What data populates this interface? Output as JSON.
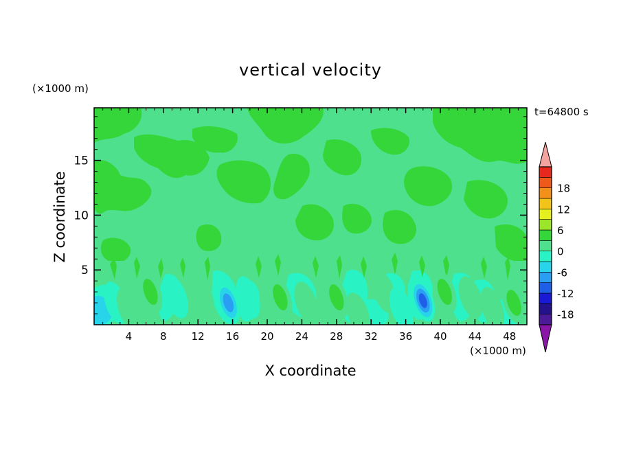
{
  "chart_data": {
    "type": "heatmap",
    "title": "vertical velocity",
    "xlabel": "X coordinate",
    "ylabel": "Z coordinate",
    "x_unit": "(×1000 m)",
    "y_unit": "(×1000 m)",
    "time_label": "t=64800 s",
    "xlim": [
      0,
      50
    ],
    "ylim": [
      0,
      19.8
    ],
    "x_ticks": [
      4,
      8,
      12,
      16,
      20,
      24,
      28,
      32,
      36,
      40,
      44,
      48
    ],
    "y_ticks": [
      5,
      10,
      15
    ],
    "colorbar": {
      "levels": [
        -21,
        -18,
        -15,
        -12,
        -9,
        -6,
        -3,
        0,
        3,
        6,
        9,
        12,
        15,
        18,
        21
      ],
      "tick_labels": [
        "18",
        "12",
        "6",
        "0",
        "-6",
        "-12",
        "-18"
      ],
      "colors": [
        "#4b1a96",
        "#24128c",
        "#1a1ad6",
        "#1f5fe8",
        "#2a9ef2",
        "#27d4ea",
        "#29f2c4",
        "#4ee08c",
        "#34d63a",
        "#9ce62a",
        "#e6f01e",
        "#f2c41a",
        "#f2901a",
        "#ef5a1a",
        "#e8281e"
      ],
      "under_color": "#8a16a8",
      "over_color": "#f4a4a0"
    },
    "background_level": "0",
    "features": [
      {
        "x": 2.5,
        "z": 2.0,
        "value": -4
      },
      {
        "x": 4.0,
        "z": 1.5,
        "value": 3
      },
      {
        "x": 6.5,
        "z": 3.0,
        "value": 6
      },
      {
        "x": 9.5,
        "z": 2.5,
        "value": -3
      },
      {
        "x": 12.5,
        "z": 2.5,
        "value": 5
      },
      {
        "x": 15.5,
        "z": 2.0,
        "value": -9
      },
      {
        "x": 17.8,
        "z": 2.5,
        "value": -4
      },
      {
        "x": 21.5,
        "z": 2.5,
        "value": 6
      },
      {
        "x": 24.5,
        "z": 2.0,
        "value": 3
      },
      {
        "x": 28.0,
        "z": 2.5,
        "value": 6
      },
      {
        "x": 30.5,
        "z": 1.0,
        "value": 4
      },
      {
        "x": 33.5,
        "z": 3.0,
        "value": 5
      },
      {
        "x": 35.5,
        "z": 1.5,
        "value": -3
      },
      {
        "x": 38.0,
        "z": 2.2,
        "value": -12
      },
      {
        "x": 40.5,
        "z": 3.0,
        "value": 6
      },
      {
        "x": 43.5,
        "z": 2.5,
        "value": 3
      },
      {
        "x": 46.0,
        "z": 1.5,
        "value": 4
      },
      {
        "x": 48.5,
        "z": 2.0,
        "value": 6
      }
    ]
  }
}
